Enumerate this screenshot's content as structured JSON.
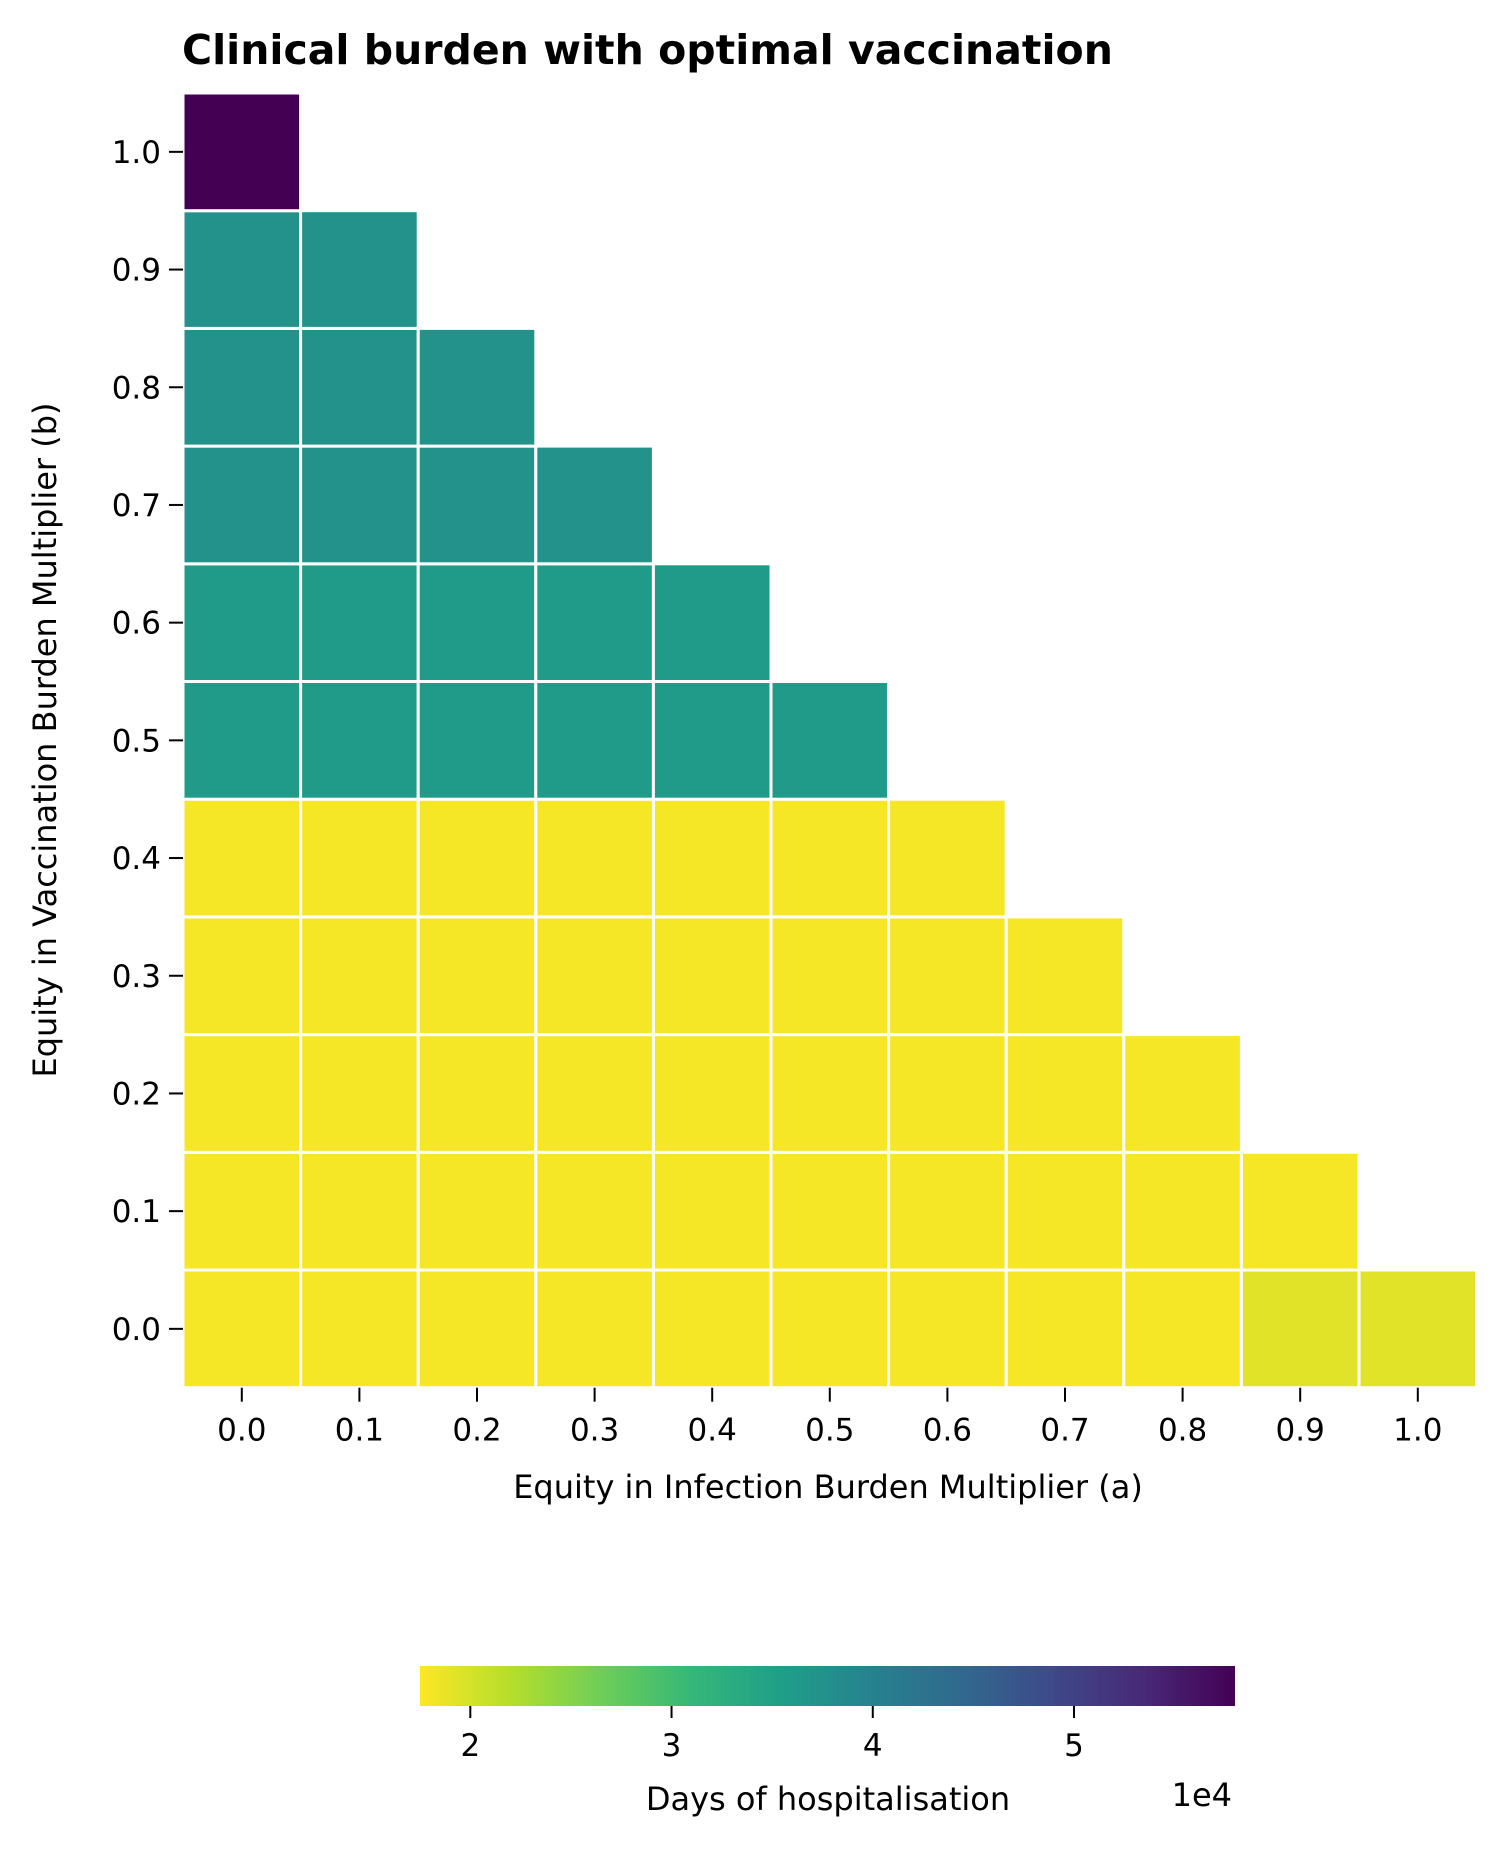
{
  "chart_data": {
    "type": "heatmap",
    "title": "Clinical burden with optimal vaccination",
    "xlabel": "Equity in Infection Burden Multiplier (a)",
    "ylabel": "Equity in Vaccination Burden Multiplier (b)",
    "x_ticks": [
      "0.0",
      "0.1",
      "0.2",
      "0.3",
      "0.4",
      "0.5",
      "0.6",
      "0.7",
      "0.8",
      "0.9",
      "1.0"
    ],
    "y_ticks": [
      "0.0",
      "0.1",
      "0.2",
      "0.3",
      "0.4",
      "0.5",
      "0.6",
      "0.7",
      "0.8",
      "0.9",
      "1.0"
    ],
    "colormap": "viridis_r",
    "color_range": [
      17500,
      58000
    ],
    "cell_border_color": "#ffffff",
    "values": [
      [
        18000,
        18000,
        18000,
        18000,
        18000,
        18000,
        18000,
        18000,
        18000,
        19300,
        19300
      ],
      [
        18000,
        18000,
        18000,
        18000,
        18000,
        18000,
        18000,
        18000,
        18000,
        18000,
        null
      ],
      [
        18000,
        18000,
        18000,
        18000,
        18000,
        18000,
        18000,
        18000,
        18000,
        null,
        null
      ],
      [
        18000,
        18000,
        18000,
        18000,
        18000,
        18000,
        18000,
        18000,
        null,
        null,
        null
      ],
      [
        18000,
        18000,
        18000,
        18000,
        18000,
        18000,
        18000,
        null,
        null,
        null,
        null
      ],
      [
        36000,
        36000,
        36000,
        36000,
        36000,
        36000,
        null,
        null,
        null,
        null,
        null
      ],
      [
        36000,
        36000,
        36000,
        36000,
        36000,
        null,
        null,
        null,
        null,
        null,
        null
      ],
      [
        37500,
        37500,
        37500,
        37500,
        null,
        null,
        null,
        null,
        null,
        null,
        null
      ],
      [
        37500,
        37500,
        37500,
        null,
        null,
        null,
        null,
        null,
        null,
        null,
        null
      ],
      [
        37500,
        37500,
        null,
        null,
        null,
        null,
        null,
        null,
        null,
        null,
        null
      ],
      [
        58000,
        null,
        null,
        null,
        null,
        null,
        null,
        null,
        null,
        null,
        null
      ]
    ],
    "colorbar": {
      "label": "Days of hospitalisation",
      "ticks": [
        20000,
        30000,
        40000,
        50000
      ],
      "tick_labels": [
        "2",
        "3",
        "4",
        "5"
      ],
      "offset_label": "1e4",
      "orientation": "horizontal"
    }
  }
}
